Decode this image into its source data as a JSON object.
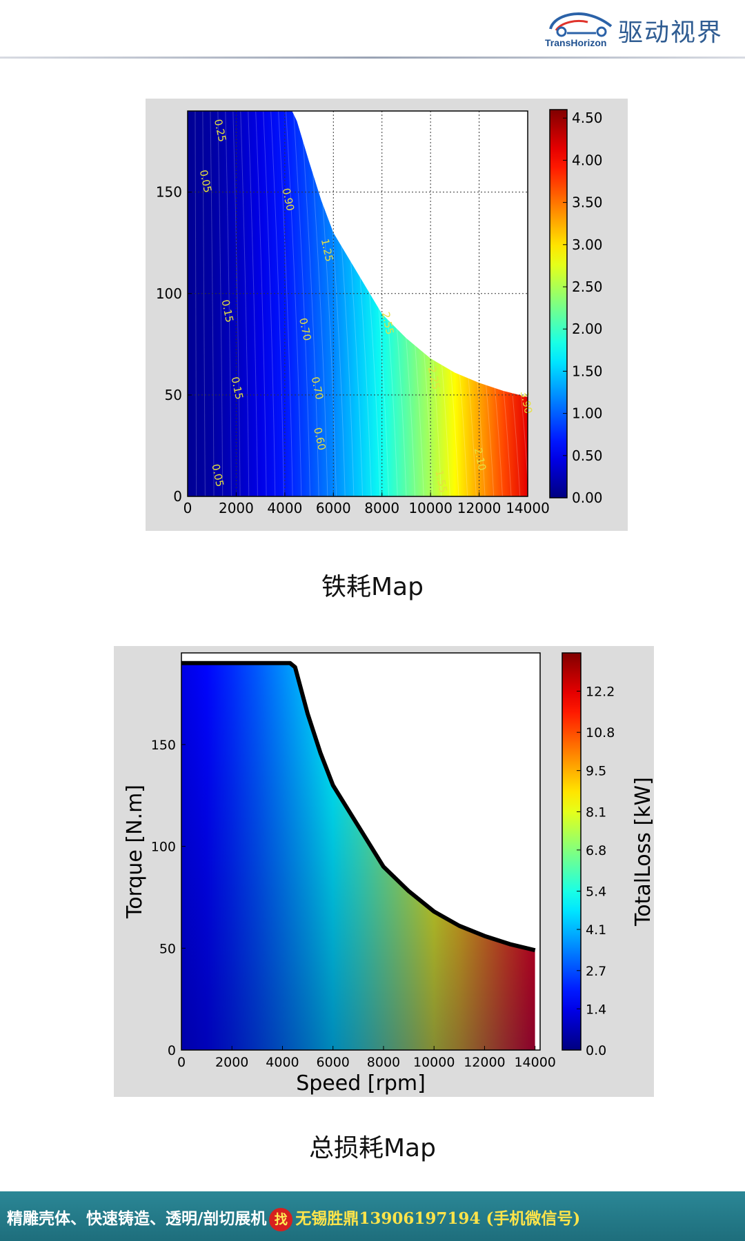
{
  "header": {
    "logo_text_en": "TransHorizon",
    "logo_text_cn": "驱动视界",
    "logo_icon": "car-swirl-logo-icon"
  },
  "captions": {
    "chart1": "铁耗Map",
    "chart2": "总损耗Map"
  },
  "footer": {
    "text_part1": "精雕壳体、快速铸造、透明/剖切展机",
    "badge": "找",
    "text_part2": "无锡胜鼎13906197194 (手机微信号)"
  },
  "chart_data": [
    {
      "type": "heatmap",
      "title": "",
      "xlabel": "",
      "ylabel": "",
      "xlim": [
        0,
        14000
      ],
      "ylim": [
        0,
        190
      ],
      "grid": true,
      "x_ticks": [
        "0",
        "2000",
        "4000",
        "6000",
        "8000",
        "10000",
        "12000",
        "14000"
      ],
      "y_ticks": [
        "0",
        "50",
        "100",
        "150"
      ],
      "colorbar": {
        "label": "",
        "range": [
          0,
          4.6
        ],
        "ticks": [
          "0.00",
          "0.50",
          "1.00",
          "1.50",
          "2.00",
          "2.50",
          "3.00",
          "3.50",
          "4.00",
          "4.50"
        ]
      },
      "torque_envelope": [
        [
          0,
          190
        ],
        [
          4300,
          190
        ],
        [
          4500,
          185
        ],
        [
          5000,
          165
        ],
        [
          5500,
          146
        ],
        [
          6000,
          130
        ],
        [
          7000,
          110
        ],
        [
          8000,
          90
        ],
        [
          9000,
          78
        ],
        [
          10000,
          68
        ],
        [
          11000,
          61
        ],
        [
          12000,
          56
        ],
        [
          13000,
          52
        ],
        [
          14000,
          49
        ]
      ],
      "contour_labels": [
        {
          "x": 1200,
          "y": 180,
          "text": "0.25"
        },
        {
          "x": 600,
          "y": 155,
          "text": "0.05"
        },
        {
          "x": 4000,
          "y": 146,
          "text": "0.90"
        },
        {
          "x": 5600,
          "y": 121,
          "text": "1.25"
        },
        {
          "x": 1500,
          "y": 91,
          "text": "0.15"
        },
        {
          "x": 4700,
          "y": 82,
          "text": "0.70"
        },
        {
          "x": 8100,
          "y": 85,
          "text": "2.55"
        },
        {
          "x": 1900,
          "y": 53,
          "text": "0.15"
        },
        {
          "x": 5200,
          "y": 53,
          "text": "0.70"
        },
        {
          "x": 10000,
          "y": 58,
          "text": "2.25"
        },
        {
          "x": 13800,
          "y": 46,
          "text": "3.90"
        },
        {
          "x": 5300,
          "y": 28,
          "text": "0.60"
        },
        {
          "x": 11900,
          "y": 18,
          "text": "2.10"
        },
        {
          "x": 1100,
          "y": 10,
          "text": "0.05"
        },
        {
          "x": 10300,
          "y": 7,
          "text": "1.55"
        }
      ]
    },
    {
      "type": "heatmap",
      "title": "",
      "xlabel": "Speed [rpm]",
      "ylabel": "Torque [N.m]",
      "xlim": [
        0,
        14200
      ],
      "ylim": [
        0,
        195
      ],
      "grid": false,
      "x_ticks": [
        "0",
        "2000",
        "4000",
        "6000",
        "8000",
        "10000",
        "12000",
        "14000"
      ],
      "y_ticks": [
        "0",
        "50",
        "100",
        "150"
      ],
      "colorbar": {
        "label": "TotalLoss [kW]",
        "range": [
          0,
          13.5
        ],
        "ticks": [
          "0.0",
          "1.4",
          "2.7",
          "4.1",
          "5.4",
          "6.8",
          "8.1",
          "9.5",
          "10.8",
          "12.2"
        ]
      },
      "torque_envelope": [
        [
          0,
          190
        ],
        [
          4300,
          190
        ],
        [
          4500,
          188
        ],
        [
          5000,
          165
        ],
        [
          5500,
          146
        ],
        [
          6000,
          130
        ],
        [
          7000,
          110
        ],
        [
          8000,
          90
        ],
        [
          9000,
          78
        ],
        [
          10000,
          68
        ],
        [
          11000,
          61
        ],
        [
          12000,
          56
        ],
        [
          13000,
          52
        ],
        [
          14000,
          49
        ]
      ]
    }
  ]
}
